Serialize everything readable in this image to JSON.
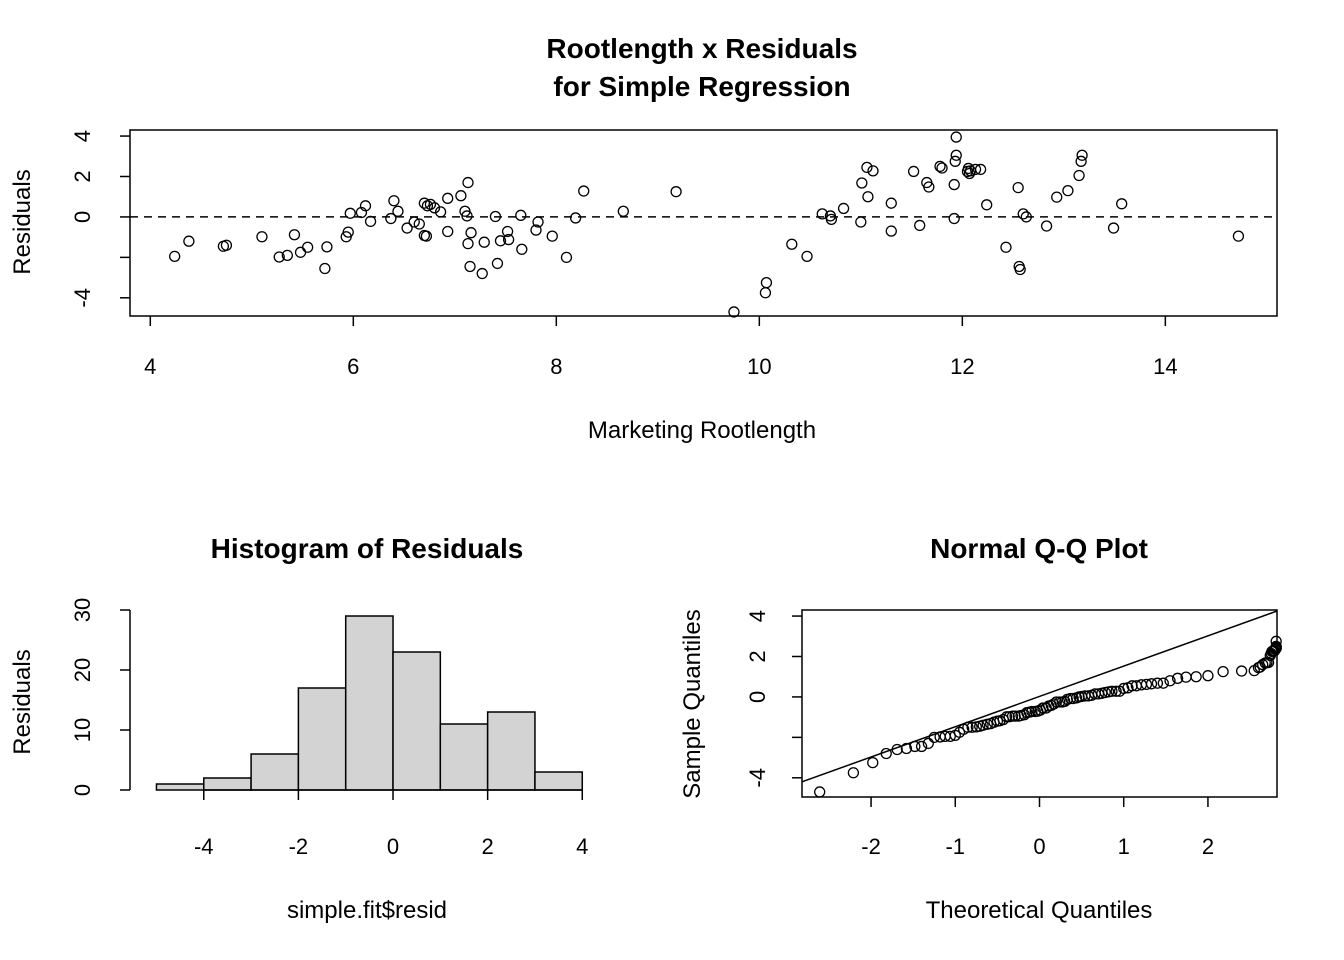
{
  "chart_data": [
    {
      "type": "scatter",
      "title_lines": [
        "Rootlength x Residuals",
        "for Simple Regression"
      ],
      "xlabel": "Marketing Rootlength",
      "ylabel": "Residuals",
      "xlim": [
        3.8,
        15.1
      ],
      "ylim": [
        -4.9,
        4.3
      ],
      "xticks": [
        4,
        6,
        8,
        10,
        12,
        14
      ],
      "xtick_labels": [
        "4",
        "6",
        "8",
        "10",
        "12",
        "14"
      ],
      "yticks": [
        -4,
        -2,
        0,
        2,
        4
      ],
      "ytick_labels": [
        "-4",
        "",
        "0",
        "2",
        "4"
      ],
      "hline": {
        "y": 0,
        "style": "dashed"
      },
      "points": [
        [
          4.24,
          -1.95
        ],
        [
          4.38,
          -1.2
        ],
        [
          4.72,
          -1.45
        ],
        [
          4.75,
          -1.4
        ],
        [
          5.1,
          -0.98
        ],
        [
          5.27,
          -1.98
        ],
        [
          5.35,
          -1.9
        ],
        [
          5.42,
          -0.88
        ],
        [
          5.48,
          -1.75
        ],
        [
          5.55,
          -1.5
        ],
        [
          5.72,
          -2.55
        ],
        [
          5.74,
          -1.48
        ],
        [
          5.93,
          -0.98
        ],
        [
          5.95,
          -0.75
        ],
        [
          5.97,
          0.18
        ],
        [
          6.08,
          0.22
        ],
        [
          6.12,
          0.55
        ],
        [
          6.17,
          -0.22
        ],
        [
          6.37,
          -0.08
        ],
        [
          6.4,
          0.8
        ],
        [
          6.44,
          0.28
        ],
        [
          6.53,
          -0.55
        ],
        [
          6.6,
          -0.25
        ],
        [
          6.65,
          -0.35
        ],
        [
          6.7,
          -0.92
        ],
        [
          6.72,
          -0.95
        ],
        [
          6.7,
          0.68
        ],
        [
          6.73,
          0.55
        ],
        [
          6.76,
          0.62
        ],
        [
          6.8,
          0.45
        ],
        [
          6.86,
          0.25
        ],
        [
          6.93,
          -0.72
        ],
        [
          6.93,
          0.92
        ],
        [
          7.06,
          1.05
        ],
        [
          7.1,
          0.28
        ],
        [
          7.12,
          0.05
        ],
        [
          7.13,
          1.7
        ],
        [
          7.13,
          -1.32
        ],
        [
          7.15,
          -2.45
        ],
        [
          7.16,
          -0.78
        ],
        [
          7.27,
          -2.8
        ],
        [
          7.29,
          -1.25
        ],
        [
          7.4,
          0.02
        ],
        [
          7.42,
          -2.3
        ],
        [
          7.45,
          -1.18
        ],
        [
          7.52,
          -0.72
        ],
        [
          7.53,
          -1.12
        ],
        [
          7.65,
          0.08
        ],
        [
          7.66,
          -1.6
        ],
        [
          7.8,
          -0.65
        ],
        [
          7.82,
          -0.25
        ],
        [
          7.96,
          -0.95
        ],
        [
          8.1,
          -2.0
        ],
        [
          8.19,
          -0.05
        ],
        [
          8.27,
          1.28
        ],
        [
          8.66,
          0.28
        ],
        [
          9.18,
          1.25
        ],
        [
          9.75,
          -4.7
        ],
        [
          10.06,
          -3.75
        ],
        [
          10.07,
          -3.25
        ],
        [
          10.32,
          -1.35
        ],
        [
          10.47,
          -1.95
        ],
        [
          10.62,
          0.15
        ],
        [
          10.7,
          0.05
        ],
        [
          10.71,
          -0.12
        ],
        [
          10.83,
          0.42
        ],
        [
          11.0,
          -0.25
        ],
        [
          11.01,
          1.68
        ],
        [
          11.06,
          2.45
        ],
        [
          11.07,
          1.0
        ],
        [
          11.12,
          2.28
        ],
        [
          11.3,
          0.68
        ],
        [
          11.3,
          -0.7
        ],
        [
          11.52,
          2.25
        ],
        [
          11.58,
          -0.42
        ],
        [
          11.65,
          1.7
        ],
        [
          11.67,
          1.48
        ],
        [
          11.78,
          2.5
        ],
        [
          11.8,
          2.42
        ],
        [
          11.92,
          -0.08
        ],
        [
          11.92,
          1.6
        ],
        [
          11.93,
          2.75
        ],
        [
          11.94,
          3.05
        ],
        [
          11.94,
          3.95
        ],
        [
          12.05,
          2.25
        ],
        [
          12.06,
          2.4
        ],
        [
          12.07,
          2.15
        ],
        [
          12.08,
          2.28
        ],
        [
          12.13,
          2.35
        ],
        [
          12.18,
          2.35
        ],
        [
          12.24,
          0.6
        ],
        [
          12.43,
          -1.5
        ],
        [
          12.55,
          1.45
        ],
        [
          12.56,
          -2.45
        ],
        [
          12.57,
          -2.6
        ],
        [
          12.6,
          0.15
        ],
        [
          12.63,
          0.0
        ],
        [
          12.83,
          -0.45
        ],
        [
          12.93,
          0.98
        ],
        [
          13.04,
          1.3
        ],
        [
          13.15,
          2.05
        ],
        [
          13.17,
          2.75
        ],
        [
          13.18,
          3.05
        ],
        [
          13.49,
          -0.55
        ],
        [
          13.57,
          0.65
        ],
        [
          14.72,
          -0.95
        ]
      ]
    },
    {
      "type": "bar",
      "subtype": "histogram",
      "title": "Histogram of Residuals",
      "xlabel": "simple.fit$resid",
      "ylabel": "Residuals",
      "bin_edges": [
        -5,
        -4,
        -3,
        -2,
        -1,
        0,
        1,
        2,
        3,
        4
      ],
      "values": [
        1,
        2,
        6,
        17,
        29,
        23,
        11,
        13,
        3
      ],
      "xticks": [
        -4,
        -2,
        0,
        2,
        4
      ],
      "xtick_labels": [
        "-4",
        "-2",
        "0",
        "2",
        "4"
      ],
      "yticks": [
        0,
        10,
        20,
        30
      ],
      "ytick_labels": [
        "0",
        "10",
        "20",
        "30"
      ],
      "xlim": [
        -5.2,
        4.1
      ],
      "ylim": [
        0,
        30
      ]
    },
    {
      "type": "scatter",
      "subtype": "qq",
      "title": "Normal Q-Q Plot",
      "xlabel": "Theoretical Quantiles",
      "ylabel": "Sample Quantiles",
      "xlim": [
        -2.82,
        2.82
      ],
      "ylim": [
        -4.95,
        4.3
      ],
      "xticks": [
        -2,
        -1,
        0,
        1,
        2
      ],
      "xtick_labels": [
        "-2",
        "-1",
        "0",
        "1",
        "2"
      ],
      "yticks": [
        -4,
        -2,
        0,
        2,
        4
      ],
      "ytick_labels": [
        "-4",
        "",
        "0",
        "2",
        "4"
      ],
      "qq_line": [
        [
          -2.82,
          -4.2
        ],
        [
          2.82,
          4.25
        ]
      ],
      "points": [
        [
          -2.61,
          -4.7
        ],
        [
          -2.21,
          -3.75
        ],
        [
          -1.98,
          -3.25
        ],
        [
          -1.82,
          -2.8
        ],
        [
          -1.69,
          -2.6
        ],
        [
          -1.58,
          -2.55
        ],
        [
          -1.48,
          -2.45
        ],
        [
          -1.4,
          -2.45
        ],
        [
          -1.32,
          -2.3
        ],
        [
          -1.25,
          -2.0
        ],
        [
          -1.18,
          -1.98
        ],
        [
          -1.12,
          -1.95
        ],
        [
          -1.06,
          -1.95
        ],
        [
          -1.0,
          -1.9
        ],
        [
          -0.95,
          -1.75
        ],
        [
          -0.9,
          -1.6
        ],
        [
          -0.85,
          -1.5
        ],
        [
          -0.8,
          -1.5
        ],
        [
          -0.75,
          -1.48
        ],
        [
          -0.71,
          -1.45
        ],
        [
          -0.67,
          -1.4
        ],
        [
          -0.62,
          -1.35
        ],
        [
          -0.58,
          -1.32
        ],
        [
          -0.54,
          -1.25
        ],
        [
          -0.5,
          -1.2
        ],
        [
          -0.47,
          -1.18
        ],
        [
          -0.43,
          -1.12
        ],
        [
          -0.39,
          -0.98
        ],
        [
          -0.36,
          -0.98
        ],
        [
          -0.32,
          -0.95
        ],
        [
          -0.29,
          -0.95
        ],
        [
          -0.25,
          -0.95
        ],
        [
          -0.22,
          -0.92
        ],
        [
          -0.18,
          -0.88
        ],
        [
          -0.15,
          -0.78
        ],
        [
          -0.12,
          -0.75
        ],
        [
          -0.09,
          -0.72
        ],
        [
          -0.05,
          -0.72
        ],
        [
          -0.02,
          -0.7
        ],
        [
          0.01,
          -0.65
        ],
        [
          0.04,
          -0.55
        ],
        [
          0.08,
          -0.55
        ],
        [
          0.11,
          -0.45
        ],
        [
          0.14,
          -0.42
        ],
        [
          0.17,
          -0.35
        ],
        [
          0.2,
          -0.25
        ],
        [
          0.24,
          -0.25
        ],
        [
          0.27,
          -0.25
        ],
        [
          0.3,
          -0.22
        ],
        [
          0.33,
          -0.12
        ],
        [
          0.37,
          -0.08
        ],
        [
          0.4,
          -0.08
        ],
        [
          0.44,
          -0.05
        ],
        [
          0.47,
          0.0
        ],
        [
          0.5,
          0.02
        ],
        [
          0.54,
          0.05
        ],
        [
          0.58,
          0.05
        ],
        [
          0.62,
          0.08
        ],
        [
          0.66,
          0.15
        ],
        [
          0.7,
          0.15
        ],
        [
          0.74,
          0.18
        ],
        [
          0.78,
          0.22
        ],
        [
          0.82,
          0.25
        ],
        [
          0.86,
          0.28
        ],
        [
          0.91,
          0.28
        ],
        [
          0.95,
          0.28
        ],
        [
          1.0,
          0.42
        ],
        [
          1.05,
          0.45
        ],
        [
          1.1,
          0.55
        ],
        [
          1.15,
          0.55
        ],
        [
          1.21,
          0.6
        ],
        [
          1.27,
          0.62
        ],
        [
          1.33,
          0.65
        ],
        [
          1.4,
          0.68
        ],
        [
          1.47,
          0.68
        ],
        [
          1.55,
          0.8
        ],
        [
          1.64,
          0.92
        ],
        [
          1.74,
          0.98
        ],
        [
          1.86,
          1.0
        ],
        [
          2.0,
          1.05
        ],
        [
          2.18,
          1.25
        ],
        [
          2.4,
          1.28
        ],
        [
          2.55,
          1.3
        ],
        [
          2.6,
          1.45
        ],
        [
          2.62,
          1.48
        ],
        [
          2.65,
          1.6
        ],
        [
          2.68,
          1.68
        ],
        [
          2.7,
          1.7
        ],
        [
          2.72,
          1.7
        ],
        [
          2.74,
          2.05
        ],
        [
          2.75,
          2.15
        ],
        [
          2.76,
          2.25
        ],
        [
          2.77,
          2.25
        ],
        [
          2.78,
          2.28
        ],
        [
          2.79,
          2.28
        ],
        [
          2.8,
          2.35
        ],
        [
          2.8,
          2.35
        ],
        [
          2.81,
          2.4
        ],
        [
          2.81,
          2.42
        ],
        [
          2.81,
          2.45
        ],
        [
          2.81,
          2.5
        ],
        [
          2.81,
          2.75
        ]
      ]
    }
  ]
}
